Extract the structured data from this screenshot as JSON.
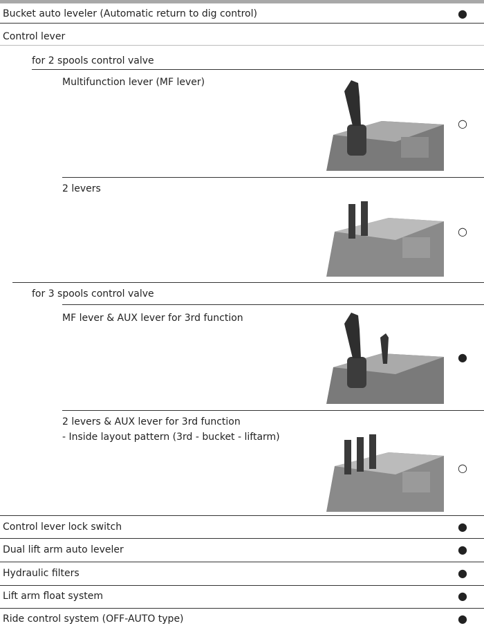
{
  "rows": [
    {
      "label": "Bucket auto leveler (Automatic return to dig control)",
      "mark": "●"
    },
    {
      "label": "Control lever"
    },
    {
      "label": "for 2 spools control valve"
    },
    {
      "label": "Multifunction lever (MF lever)",
      "mark": "○"
    },
    {
      "label": "2 levers",
      "mark": "○"
    },
    {
      "label": "for 3 spools control valve"
    },
    {
      "label": "MF lever & AUX lever for 3rd function",
      "mark": "●"
    },
    {
      "label": "2 levers & AUX lever for 3rd function",
      "note": "- Inside layout pattern (3rd - bucket - liftarm)",
      "mark": "○"
    },
    {
      "label": "Control lever lock switch",
      "mark": "●"
    },
    {
      "label": "Dual lift arm auto leveler",
      "mark": "●"
    },
    {
      "label": "Hydraulic filters",
      "mark": "●"
    },
    {
      "label": "Lift arm float system",
      "mark": "●"
    },
    {
      "label": "Ride control system (OFF-AUTO type)",
      "mark": "●"
    }
  ]
}
